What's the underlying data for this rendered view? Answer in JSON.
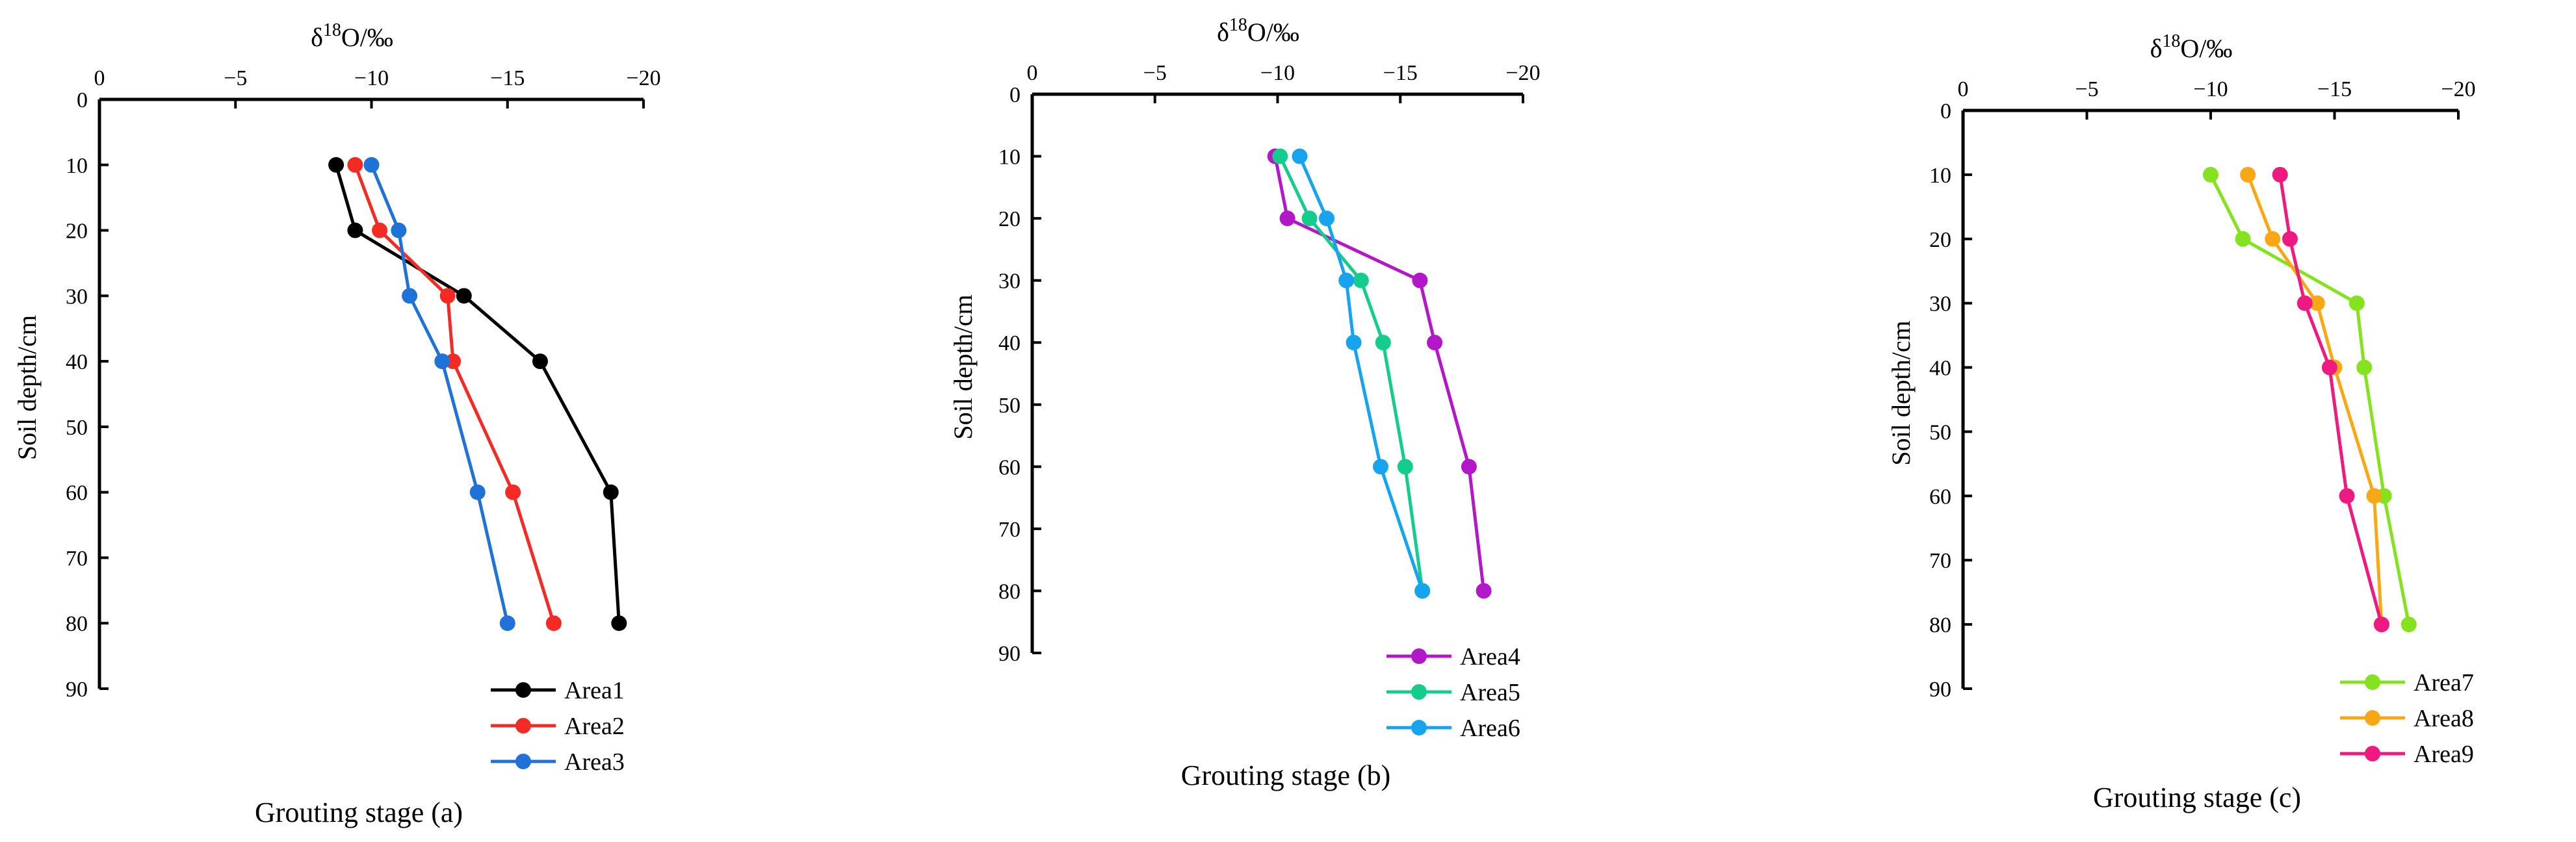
{
  "chart_data": [
    {
      "type": "line",
      "title": "Grouting stage (a)",
      "xlabel_prefix": "δ",
      "xlabel_sup": "18",
      "xlabel_suffix": "O/‰",
      "ylabel": "Soil depth/cm",
      "x_ticks": [
        "0",
        "−5",
        "−10",
        "−15",
        "−20"
      ],
      "y_ticks": [
        "0",
        "10",
        "20",
        "30",
        "40",
        "50",
        "60",
        "70",
        "80",
        "90"
      ],
      "xlim": [
        0,
        -20
      ],
      "ylim": [
        0,
        90
      ],
      "depths": [
        10,
        20,
        30,
        40,
        60,
        80
      ],
      "series": [
        {
          "name": "Area1",
          "color": "#000000",
          "values": [
            -8.7,
            -9.4,
            -13.4,
            -16.2,
            -18.8,
            -19.1
          ]
        },
        {
          "name": "Area2",
          "color": "#f42b24",
          "values": [
            -9.4,
            -10.3,
            -12.8,
            -13.0,
            -15.2,
            -16.7
          ]
        },
        {
          "name": "Area3",
          "color": "#1f72d8",
          "values": [
            -10.0,
            -11.0,
            -11.4,
            -12.6,
            -13.9,
            -15.0
          ]
        }
      ]
    },
    {
      "type": "line",
      "title": "Grouting stage (b)",
      "xlabel_prefix": "δ",
      "xlabel_sup": "18",
      "xlabel_suffix": "O/‰",
      "ylabel": "Soil depth/cm",
      "x_ticks": [
        "0",
        "−5",
        "−10",
        "−15",
        "−20"
      ],
      "y_ticks": [
        "0",
        "10",
        "20",
        "30",
        "40",
        "50",
        "60",
        "70",
        "80",
        "90"
      ],
      "xlim": [
        0,
        -20
      ],
      "ylim": [
        0,
        90
      ],
      "depths": [
        10,
        20,
        30,
        40,
        60,
        80
      ],
      "series": [
        {
          "name": "Area4",
          "color": "#b218c8",
          "values": [
            -9.9,
            -10.4,
            -15.8,
            -16.4,
            -17.8,
            -18.4
          ]
        },
        {
          "name": "Area5",
          "color": "#14cc8c",
          "values": [
            -10.1,
            -11.3,
            -13.4,
            -14.3,
            -15.2,
            -15.9
          ]
        },
        {
          "name": "Area6",
          "color": "#16a4ee",
          "values": [
            -10.9,
            -12.0,
            -12.8,
            -13.1,
            -14.2,
            -15.9
          ]
        }
      ]
    },
    {
      "type": "line",
      "title": "Grouting stage (c)",
      "xlabel_prefix": "δ",
      "xlabel_sup": "18",
      "xlabel_suffix": "O/‰",
      "ylabel": "Soil depth/cm",
      "x_ticks": [
        "0",
        "−5",
        "−10",
        "−15",
        "−20"
      ],
      "y_ticks": [
        "0",
        "10",
        "20",
        "30",
        "40",
        "50",
        "60",
        "70",
        "80",
        "90"
      ],
      "xlim": [
        0,
        -20
      ],
      "ylim": [
        0,
        90
      ],
      "depths": [
        10,
        20,
        30,
        40,
        60,
        80
      ],
      "series": [
        {
          "name": "Area7",
          "color": "#84e21e",
          "values": [
            -10.0,
            -11.3,
            -15.9,
            -16.2,
            -17.0,
            -18.0
          ]
        },
        {
          "name": "Area8",
          "color": "#f8a814",
          "values": [
            -11.5,
            -12.5,
            -14.3,
            -15.0,
            -16.6,
            -16.9
          ]
        },
        {
          "name": "Area9",
          "color": "#ee1a80",
          "values": [
            -12.8,
            -13.2,
            -13.8,
            -14.8,
            -15.5,
            -16.9
          ]
        }
      ]
    }
  ]
}
